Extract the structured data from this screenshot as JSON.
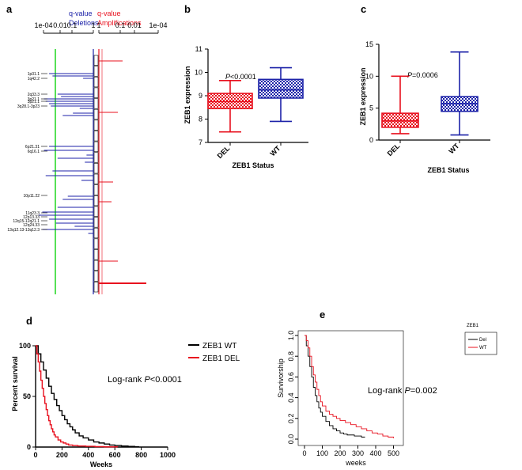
{
  "panels": {
    "a": "a",
    "b": "b",
    "c": "c",
    "d": "d",
    "e": "e"
  },
  "chart_data": [
    {
      "id": "a",
      "type": "bar",
      "title_left": [
        "q-value",
        "Deletions"
      ],
      "title_right": [
        "q-value",
        "Amplifications"
      ],
      "left_axis_ticks": [
        "1e-04",
        "0.01",
        "0.1",
        "1"
      ],
      "right_axis_ticks": [
        "1",
        "0.1",
        "0.01",
        "1e-04"
      ],
      "significance_line_q": 0.25,
      "deletion_labels": [
        "1p31.1",
        "1q42.2",
        "2q33.3",
        "3p21.1",
        "3p21.1",
        "3q28.1-3p23",
        "6p21.31",
        "6q16.1",
        "10p11.22",
        "11q23.3",
        "12p13.33",
        "12q15-12q21.1",
        "12q24.33",
        "13q12.13-13q12.3"
      ],
      "deletions_neglog10q": [
        2.6,
        2.4,
        0.6,
        2.1,
        1.9,
        2.9,
        2.8,
        2.6,
        2.5,
        0.8,
        1.2,
        1.8,
        2.6,
        2.9,
        0.4,
        2.1,
        0.5,
        2.4,
        2.8,
        0.7,
        1.5,
        1.8,
        2.1,
        3.0,
        3.2,
        2.6,
        2.2,
        1.1,
        3.0,
        0.3
      ],
      "amplifications_neglog10q": [
        1.5,
        1.2,
        0.9,
        0.8,
        1.2,
        3.0
      ]
    },
    {
      "id": "b",
      "type": "box",
      "title": "P<0.0001",
      "p_prefix": "P",
      "p_rest": "<0.0001",
      "xlabel": "ZEB1 Status",
      "ylabel": "ZEB1 expression",
      "categories": [
        "DEL",
        "WT"
      ],
      "ylim": [
        7,
        11
      ],
      "yticks": [
        "7",
        "8",
        "9",
        "10",
        "11"
      ],
      "boxes": [
        {
          "name": "DEL",
          "min": 7.45,
          "q1": 8.45,
          "median": 8.75,
          "q3": 9.1,
          "max": 9.65,
          "color": "#e8101e"
        },
        {
          "name": "WT",
          "min": 7.9,
          "q1": 8.9,
          "median": 9.25,
          "q3": 9.7,
          "max": 10.2,
          "color": "#1c22a8"
        }
      ]
    },
    {
      "id": "c",
      "type": "box",
      "title": "P=0.0006",
      "p_prefix": "P",
      "p_rest": "=0.0006",
      "xlabel": "ZEB1 Status",
      "ylabel": "ZEB1 expression",
      "categories": [
        "DEL",
        "WT"
      ],
      "ylim": [
        0,
        15
      ],
      "yticks": [
        "0",
        "5",
        "10",
        "15"
      ],
      "boxes": [
        {
          "name": "DEL",
          "min": 1.0,
          "q1": 2.0,
          "median": 3.0,
          "q3": 4.2,
          "max": 10.0,
          "color": "#e8101e"
        },
        {
          "name": "WT",
          "min": 0.8,
          "q1": 4.5,
          "median": 5.7,
          "q3": 6.8,
          "max": 13.8,
          "color": "#1c22a8"
        }
      ]
    },
    {
      "id": "d",
      "type": "line",
      "ylabel": "Percent survival",
      "xlabel": "Weeks",
      "xlim": [
        0,
        1000
      ],
      "ylim": [
        0,
        100
      ],
      "xticks": [
        "0",
        "200",
        "400",
        "600",
        "800",
        "1000"
      ],
      "yticks": [
        "0",
        "50",
        "100"
      ],
      "annotation": "Log-rank P<0.0001",
      "annot_prefix": "Log-rank ",
      "annot_p": "P",
      "annot_rest": "<0.0001",
      "legend": [
        "ZEB1 WT",
        "ZEB1 DEL"
      ],
      "series": [
        {
          "name": "ZEB1 WT",
          "color": "#000000",
          "x": [
            0,
            20,
            40,
            60,
            80,
            100,
            120,
            140,
            160,
            180,
            200,
            220,
            240,
            260,
            280,
            300,
            330,
            360,
            400,
            440,
            480,
            520,
            560,
            600,
            650,
            700,
            750,
            780
          ],
          "y": [
            100,
            92,
            84,
            76,
            68,
            60,
            53,
            47,
            41,
            36,
            31,
            27,
            23,
            20,
            17,
            14,
            11,
            9,
            7,
            5,
            4,
            3,
            2,
            1.5,
            1,
            0.6,
            0.3,
            0
          ]
        },
        {
          "name": "ZEB1 DEL",
          "color": "#e8101e",
          "x": [
            0,
            10,
            20,
            30,
            40,
            50,
            60,
            70,
            80,
            90,
            100,
            110,
            120,
            130,
            140,
            150,
            170,
            190,
            210,
            230,
            250,
            280,
            320,
            380,
            450,
            520,
            620
          ],
          "y": [
            100,
            92,
            84,
            75,
            66,
            58,
            50,
            43,
            37,
            31,
            26,
            22,
            18,
            15,
            12,
            10,
            7,
            5,
            4,
            3,
            2,
            1.5,
            1,
            0.7,
            0.4,
            0.2,
            0
          ]
        }
      ]
    },
    {
      "id": "e",
      "type": "line",
      "ylabel": "Survivorship",
      "xlabel": "weeks",
      "xlim": [
        0,
        520
      ],
      "ylim": [
        0,
        1.0
      ],
      "xticks": [
        "0",
        "100",
        "200",
        "300",
        "400",
        "500"
      ],
      "yticks": [
        "0.0",
        "0.2",
        "0.4",
        "0.6",
        "0.8",
        "1.0"
      ],
      "annotation": "Log-rank P=0.002",
      "annot_prefix": "Log-rank ",
      "annot_p": "P",
      "annot_rest": "=0.002",
      "legend_title": "ZEB1",
      "legend": [
        "Del",
        "WT"
      ],
      "series": [
        {
          "name": "Del",
          "color": "#000000",
          "x": [
            0,
            10,
            20,
            30,
            40,
            50,
            60,
            70,
            80,
            90,
            100,
            120,
            140,
            160,
            180,
            200,
            220,
            240,
            260,
            280,
            300,
            320,
            340
          ],
          "y": [
            1.0,
            0.9,
            0.8,
            0.7,
            0.6,
            0.5,
            0.42,
            0.36,
            0.3,
            0.26,
            0.22,
            0.17,
            0.13,
            0.1,
            0.08,
            0.06,
            0.05,
            0.04,
            0.04,
            0.03,
            0.03,
            0.02,
            0.02
          ]
        },
        {
          "name": "WT",
          "color": "#e8101e",
          "x": [
            0,
            10,
            20,
            30,
            40,
            50,
            60,
            70,
            80,
            90,
            100,
            120,
            140,
            160,
            180,
            200,
            230,
            260,
            290,
            320,
            350,
            380,
            410,
            440,
            470,
            500
          ],
          "y": [
            1.0,
            0.95,
            0.88,
            0.8,
            0.7,
            0.62,
            0.55,
            0.48,
            0.42,
            0.36,
            0.32,
            0.27,
            0.24,
            0.22,
            0.2,
            0.18,
            0.16,
            0.14,
            0.12,
            0.1,
            0.08,
            0.06,
            0.05,
            0.03,
            0.02,
            0.01
          ]
        }
      ]
    }
  ]
}
